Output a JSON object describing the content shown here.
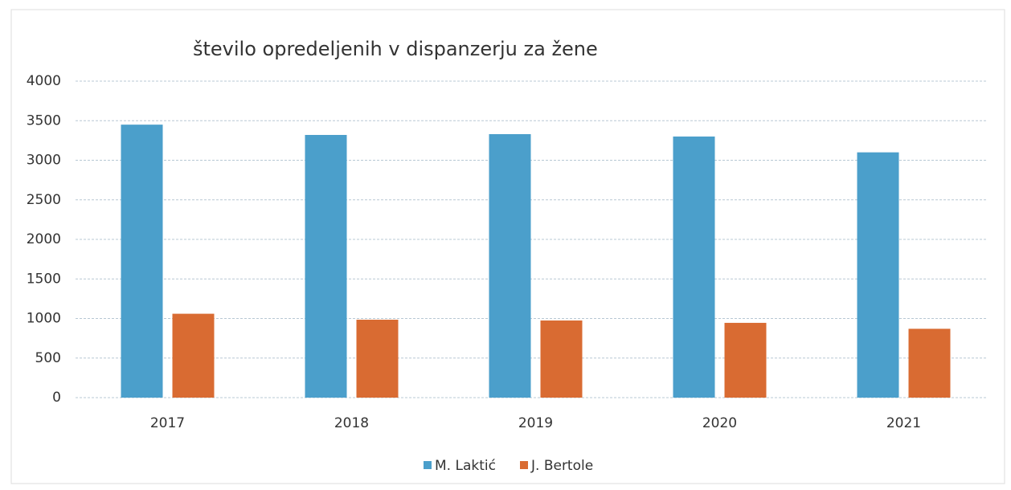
{
  "chart_data": {
    "type": "bar",
    "title": "število opredeljenih  v dispanzerju za žene",
    "categories": [
      "2017",
      "2018",
      "2019",
      "2020",
      "2021"
    ],
    "series": [
      {
        "name": "M. Laktić",
        "color": "#4b9fcb",
        "values": [
          3450,
          3320,
          3330,
          3300,
          3100
        ]
      },
      {
        "name": "J. Bertole",
        "color": "#d96b32",
        "values": [
          1060,
          985,
          975,
          945,
          870
        ]
      }
    ],
    "ylim": [
      0,
      4000
    ],
    "yticks": [
      0,
      500,
      1000,
      1500,
      2000,
      2500,
      3000,
      3500,
      4000
    ],
    "grid": true,
    "legend": "bottom"
  }
}
